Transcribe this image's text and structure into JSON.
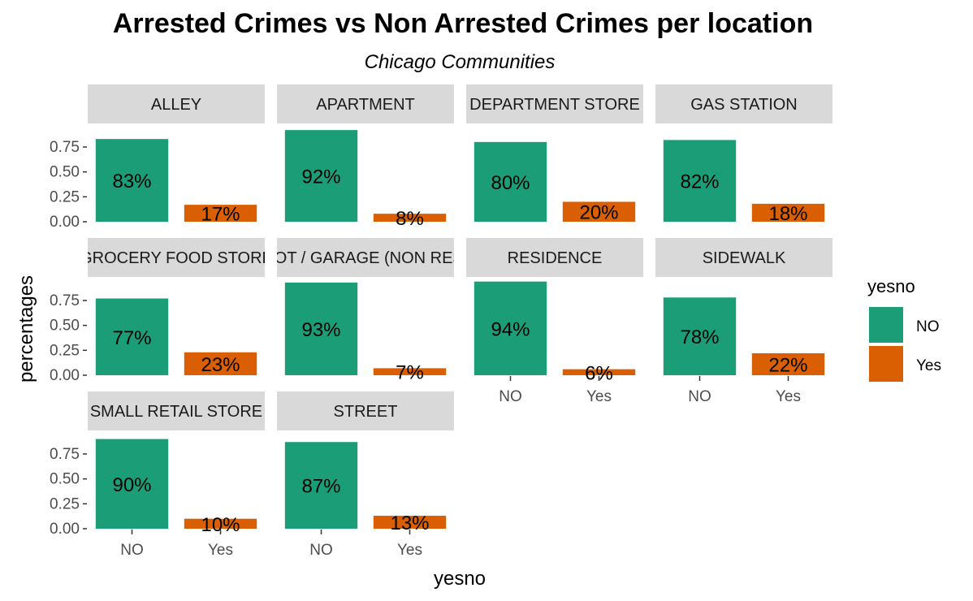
{
  "chart_data": {
    "type": "bar",
    "title": "Arrested Crimes vs Non Arrested Crimes per location",
    "subtitle": "Chicago Communities",
    "xlabel": "yesno",
    "ylabel": "percentages",
    "categories": [
      "NO",
      "Yes"
    ],
    "y_ticks": [
      "0.00",
      "0.25",
      "0.50",
      "0.75"
    ],
    "ylim": [
      0,
      0.95
    ],
    "legend": {
      "title": "yesno",
      "placement": "right",
      "entries": [
        {
          "label": "NO",
          "color": "#1b9e77"
        },
        {
          "label": "Yes",
          "color": "#d95f02"
        }
      ]
    },
    "panels": [
      {
        "name": "ALLEY",
        "values": [
          0.83,
          0.17
        ],
        "labels": [
          "83%",
          "17%"
        ]
      },
      {
        "name": "APARTMENT",
        "values": [
          0.92,
          0.08
        ],
        "labels": [
          "92%",
          "8%"
        ]
      },
      {
        "name": "DEPARTMENT STORE",
        "values": [
          0.8,
          0.2
        ],
        "labels": [
          "80%",
          "20%"
        ]
      },
      {
        "name": "GAS STATION",
        "values": [
          0.82,
          0.18
        ],
        "labels": [
          "82%",
          "18%"
        ]
      },
      {
        "name": "GROCERY FOOD STORE",
        "values": [
          0.77,
          0.23
        ],
        "labels": [
          "77%",
          "23%"
        ]
      },
      {
        "name": "PARKING LOT / GARAGE (NON RESIDENTIAL)",
        "values": [
          0.93,
          0.07
        ],
        "labels": [
          "93%",
          "7%"
        ]
      },
      {
        "name": "RESIDENCE",
        "values": [
          0.94,
          0.06
        ],
        "labels": [
          "94%",
          "6%"
        ]
      },
      {
        "name": "SIDEWALK",
        "values": [
          0.78,
          0.22
        ],
        "labels": [
          "78%",
          "22%"
        ]
      },
      {
        "name": "SMALL RETAIL STORE",
        "values": [
          0.9,
          0.1
        ],
        "labels": [
          "90%",
          "10%"
        ]
      },
      {
        "name": "STREET",
        "values": [
          0.87,
          0.13
        ],
        "labels": [
          "87%",
          "13%"
        ]
      }
    ]
  }
}
